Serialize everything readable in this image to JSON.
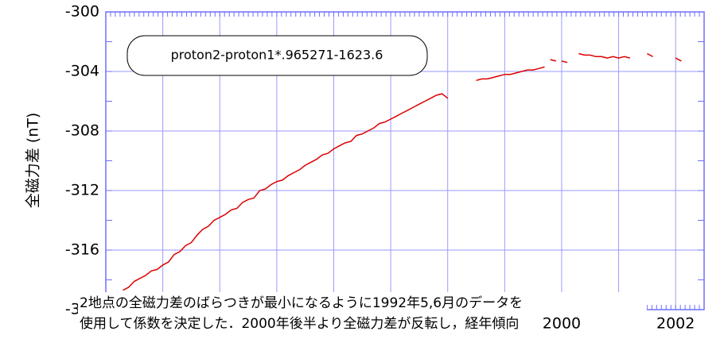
{
  "chart_data": {
    "type": "line",
    "y_label": "全磁力差 (nT)",
    "annotation_lines": [
      "2地点の全磁力差のばらつきが最小になるように1992年5,6月のデータを",
      "使用して係数を決定した．2000年後半より全磁力差が反転し，経年傾向"
    ],
    "xlim": [
      1992,
      2002.5
    ],
    "xticks": [
      1993,
      1994,
      1995,
      1996,
      1997,
      1998,
      1999,
      2000,
      2001,
      2002
    ],
    "xtick_labels_at": [
      2000,
      2002
    ],
    "ylim": [
      -320,
      -300
    ],
    "yticks": [
      -300,
      -304,
      -308,
      -312,
      -316,
      -320
    ],
    "grid": true,
    "legend": "top-left",
    "series": [
      {
        "name": "proton2-proton1*.965271-1623.6",
        "color": "#dd0000",
        "x": [
          1992.3,
          1992.4,
          1992.5,
          1992.6,
          1992.7,
          1992.8,
          1992.9,
          1993.0,
          1993.1,
          1993.2,
          1993.3,
          1993.4,
          1993.5,
          1993.6,
          1993.7,
          1993.8,
          1993.9,
          1994.0,
          1994.1,
          1994.2,
          1994.3,
          1994.4,
          1994.5,
          1994.6,
          1994.7,
          1994.8,
          1994.9,
          1995.0,
          1995.1,
          1995.2,
          1995.3,
          1995.4,
          1995.5,
          1995.6,
          1995.7,
          1995.8,
          1995.9,
          1996.0,
          1996.1,
          1996.2,
          1996.3,
          1996.4,
          1996.5,
          1996.6,
          1996.7,
          1996.8,
          1996.9,
          1997.0,
          1997.1,
          1997.2,
          1997.3,
          1997.4,
          1997.5,
          1997.6,
          1997.7,
          1997.8,
          1997.9,
          1998.0,
          1998.1,
          1998.5,
          1998.6,
          1998.7,
          1998.8,
          1998.9,
          1999.0,
          1999.1,
          1999.2,
          1999.3,
          1999.4,
          1999.5,
          1999.6,
          1999.7,
          1999.75,
          1999.8,
          1999.9,
          1999.95,
          2000.0,
          2000.1,
          2000.2,
          2000.3,
          2000.4,
          2000.5,
          2000.6,
          2000.7,
          2000.8,
          2000.9,
          2001.0,
          2001.1,
          2001.2,
          2001.3,
          2001.5,
          2001.6,
          2001.8,
          2002.0,
          2002.1
        ],
        "values": [
          -318.7,
          -318.5,
          -318.1,
          -317.9,
          -317.7,
          -317.4,
          -317.3,
          -317.0,
          -316.8,
          -316.3,
          -316.1,
          -315.7,
          -315.5,
          -315.0,
          -314.6,
          -314.4,
          -314.0,
          -313.8,
          -313.6,
          -313.3,
          -313.2,
          -312.8,
          -312.6,
          -312.5,
          -312.0,
          -311.9,
          -311.6,
          -311.4,
          -311.3,
          -311.0,
          -310.8,
          -310.6,
          -310.3,
          -310.1,
          -309.9,
          -309.6,
          -309.5,
          -309.2,
          -309.0,
          -308.8,
          -308.7,
          -308.3,
          -308.2,
          -308.0,
          -307.8,
          -307.5,
          -307.4,
          -307.2,
          -307.0,
          -306.8,
          -306.6,
          -306.4,
          -306.2,
          -306.0,
          -305.8,
          -305.6,
          -305.5,
          -305.8,
          null,
          -304.6,
          -304.5,
          -304.5,
          -304.4,
          -304.3,
          -304.2,
          -304.2,
          -304.1,
          -304.0,
          -303.9,
          -303.9,
          -303.8,
          -303.7,
          null,
          -303.2,
          -303.3,
          null,
          -303.3,
          -303.4,
          null,
          -302.8,
          -302.9,
          -302.9,
          -303.0,
          -303.0,
          -303.1,
          -303.0,
          -303.1,
          -303.0,
          -303.1,
          null,
          -302.8,
          -303.0,
          null,
          -303.1,
          -303.3
        ]
      }
    ]
  }
}
